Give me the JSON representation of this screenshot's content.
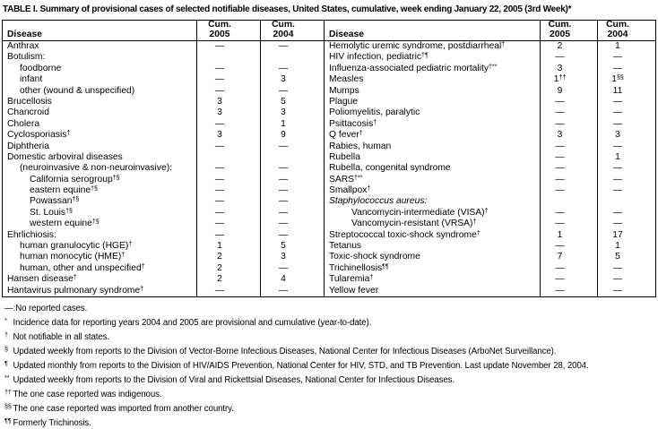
{
  "title": "TABLE I. Summary of provisional cases of selected notifiable diseases, United States, cumulative, week ending January 22, 2005 (3rd Week)*",
  "table": {
    "header": {
      "disease": "Disease",
      "cum": "Cum.",
      "year_2005": "2005",
      "year_2004": "2004"
    },
    "left_rows": [
      {
        "disease": "Anthrax",
        "indent": 0,
        "cum_2005": "—",
        "cum_2004": "—"
      },
      {
        "disease": "Botulism:",
        "indent": 0,
        "cum_2005": "",
        "cum_2004": ""
      },
      {
        "disease": "foodborne",
        "indent": 1,
        "cum_2005": "—",
        "cum_2004": "—"
      },
      {
        "disease": "infant",
        "indent": 1,
        "cum_2005": "—",
        "cum_2004": "3"
      },
      {
        "disease": "other (wound & unspecified)",
        "indent": 1,
        "cum_2005": "—",
        "cum_2004": "—"
      },
      {
        "disease": "Brucellosis",
        "indent": 0,
        "cum_2005": "3",
        "cum_2004": "5"
      },
      {
        "disease": "Chancroid",
        "indent": 0,
        "cum_2005": "3",
        "cum_2004": "3"
      },
      {
        "disease": "Cholera",
        "indent": 0,
        "cum_2005": "—",
        "cum_2004": "1"
      },
      {
        "disease": "Cyclosporiasis†",
        "indent": 0,
        "cum_2005": "3",
        "cum_2004": "9"
      },
      {
        "disease": "Diphtheria",
        "indent": 0,
        "cum_2005": "—",
        "cum_2004": "—"
      },
      {
        "disease": "Domestic arboviral diseases",
        "indent": 0,
        "cum_2005": "",
        "cum_2004": ""
      },
      {
        "disease": "(neuroinvasive & non-neuroinvasive):",
        "indent": 1,
        "cum_2005": "—",
        "cum_2004": "—"
      },
      {
        "disease": "California serogroup†§",
        "indent": 2,
        "cum_2005": "—",
        "cum_2004": "—"
      },
      {
        "disease": "eastern equine†§",
        "indent": 2,
        "cum_2005": "—",
        "cum_2004": "—"
      },
      {
        "disease": "Powassan†§",
        "indent": 2,
        "cum_2005": "—",
        "cum_2004": "—"
      },
      {
        "disease": "St. Louis†§",
        "indent": 2,
        "cum_2005": "—",
        "cum_2004": "—"
      },
      {
        "disease": "western equine†§",
        "indent": 2,
        "cum_2005": "—",
        "cum_2004": "—"
      },
      {
        "disease": "Ehrlichiosis:",
        "indent": 0,
        "cum_2005": "—",
        "cum_2004": "—"
      },
      {
        "disease": "human granulocytic (HGE)†",
        "indent": 1,
        "cum_2005": "1",
        "cum_2004": "5"
      },
      {
        "disease": "human monocytic (HME)†",
        "indent": 1,
        "cum_2005": "2",
        "cum_2004": "3"
      },
      {
        "disease": "human, other and unspecified†",
        "indent": 1,
        "cum_2005": "2",
        "cum_2004": "—"
      },
      {
        "disease": "Hansen disease†",
        "indent": 0,
        "cum_2005": "2",
        "cum_2004": "4"
      },
      {
        "disease": "Hantavirus pulmonary syndrome†",
        "indent": 0,
        "cum_2005": "—",
        "cum_2004": "—"
      }
    ],
    "right_rows": [
      {
        "disease": "Hemolytic uremic syndrome, postdiarrheal†",
        "indent": 0,
        "cum_2005": "2",
        "cum_2004": "1"
      },
      {
        "disease": "HIV infection, pediatric†¶",
        "indent": 0,
        "cum_2005": "—",
        "cum_2004": "—"
      },
      {
        "disease": "Influenza-associated pediatric mortality†**",
        "indent": 0,
        "cum_2005": "3",
        "cum_2004": "—"
      },
      {
        "disease": "Measles",
        "indent": 0,
        "cum_2005": "1††",
        "cum_2004": "1§§"
      },
      {
        "disease": "Mumps",
        "indent": 0,
        "cum_2005": "9",
        "cum_2004": "11"
      },
      {
        "disease": "Plague",
        "indent": 0,
        "cum_2005": "—",
        "cum_2004": "—"
      },
      {
        "disease": "Poliomyelitis, paralytic",
        "indent": 0,
        "cum_2005": "—",
        "cum_2004": "—"
      },
      {
        "disease": "Psittacosis†",
        "indent": 0,
        "cum_2005": "—",
        "cum_2004": "—"
      },
      {
        "disease": "Q fever†",
        "indent": 0,
        "cum_2005": "3",
        "cum_2004": "3"
      },
      {
        "disease": "Rabies, human",
        "indent": 0,
        "cum_2005": "—",
        "cum_2004": "—"
      },
      {
        "disease": "Rubella",
        "indent": 0,
        "cum_2005": "—",
        "cum_2004": "1"
      },
      {
        "disease": "Rubella, congenital syndrome",
        "indent": 0,
        "cum_2005": "—",
        "cum_2004": "—"
      },
      {
        "disease": "SARS†**",
        "indent": 0,
        "cum_2005": "—",
        "cum_2004": "—"
      },
      {
        "disease": "Smallpox†",
        "indent": 0,
        "cum_2005": "—",
        "cum_2004": "—"
      },
      {
        "disease": "Staphylococcus aureus:",
        "indent": 0,
        "italic": true,
        "cum_2005": "",
        "cum_2004": ""
      },
      {
        "disease": "Vancomycin-intermediate (VISA)†",
        "indent": 2,
        "cum_2005": "—",
        "cum_2004": "—"
      },
      {
        "disease": "Vancomycin-resistant (VRSA)†",
        "indent": 2,
        "cum_2005": "—",
        "cum_2004": "—"
      },
      {
        "disease": "Streptococcal toxic-shock syndrome†",
        "indent": 0,
        "cum_2005": "1",
        "cum_2004": "17"
      },
      {
        "disease": "Tetanus",
        "indent": 0,
        "cum_2005": "—",
        "cum_2004": "1"
      },
      {
        "disease": "Toxic-shock syndrome",
        "indent": 0,
        "cum_2005": "7",
        "cum_2004": "5"
      },
      {
        "disease": "Trichinellosis¶¶",
        "indent": 0,
        "cum_2005": "—",
        "cum_2004": "—"
      },
      {
        "disease": "Tularemia†",
        "indent": 0,
        "cum_2005": "—",
        "cum_2004": "—"
      },
      {
        "disease": "Yellow fever",
        "indent": 0,
        "cum_2005": "—",
        "cum_2004": "—"
      }
    ]
  },
  "footnotes": [
    {
      "marker": "—:",
      "text": "No reported cases."
    },
    {
      "marker": "*",
      "text": "Incidence data for reporting years 2004 and 2005 are provisional and cumulative (year-to-date)."
    },
    {
      "marker": "†",
      "text": "Not notifiable in all states."
    },
    {
      "marker": "§",
      "text": "Updated weekly from reports to the Division of Vector-Borne Infectious Diseases, National Center for Infectious Diseases (ArboNet Surveillance)."
    },
    {
      "marker": "¶",
      "text": "Updated monthly from reports to the Division of HIV/AIDS Prevention, National Center for HIV, STD, and TB Prevention. Last update November 28, 2004."
    },
    {
      "marker": "**",
      "text": "Updated weekly from reports to the Division of Viral and Rickettsial Diseases, National Center for Infectious Diseases."
    },
    {
      "marker": "††",
      "text": "The one case reported was indigenous."
    },
    {
      "marker": "§§",
      "text": "The one case reported was imported from another country."
    },
    {
      "marker": "¶¶",
      "text": "Formerly Trichinosis."
    }
  ]
}
